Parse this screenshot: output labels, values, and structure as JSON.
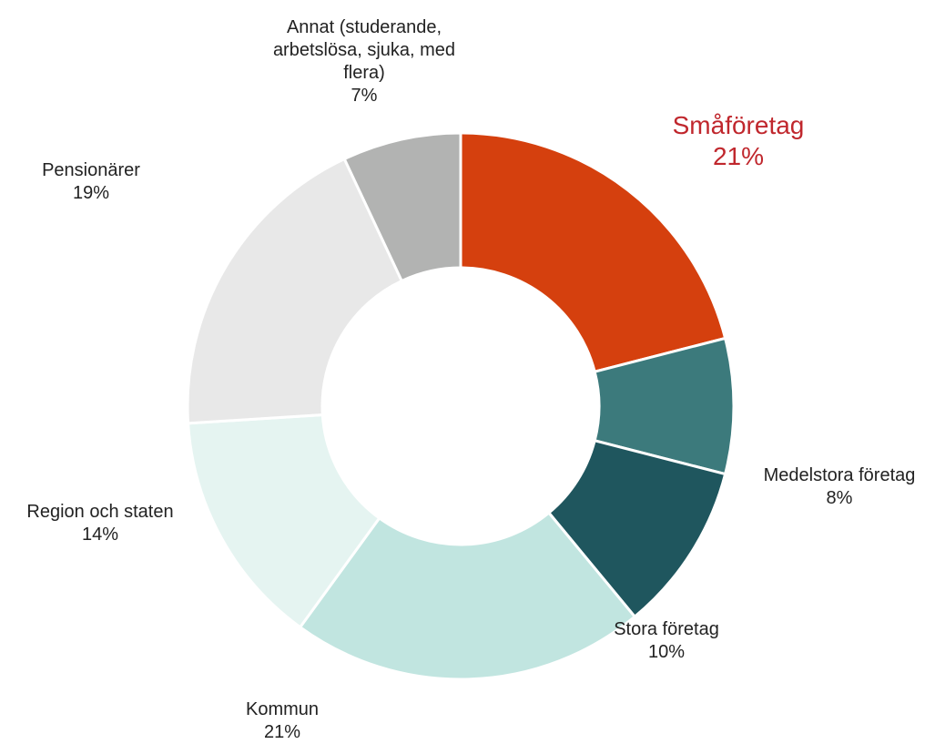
{
  "chart_data": {
    "type": "donut",
    "categories": [
      "Småföretag",
      "Medelstora företag",
      "Stora företag",
      "Kommun",
      "Region och staten",
      "Pensionärer",
      "Annat (studerande, arbetslösa, sjuka, med flera)"
    ],
    "values": [
      21,
      8,
      10,
      21,
      14,
      19,
      7
    ],
    "value_labels": [
      "21%",
      "8%",
      "10%",
      "21%",
      "14%",
      "19%",
      "7%"
    ],
    "colors": [
      "#d5400e",
      "#3c7a7c",
      "#1f565e",
      "#c1e5e0",
      "#e5f4f1",
      "#e8e8e8",
      "#b2b3b2"
    ],
    "label_highlight": {
      "index": 0,
      "color": "#c0272d"
    }
  }
}
